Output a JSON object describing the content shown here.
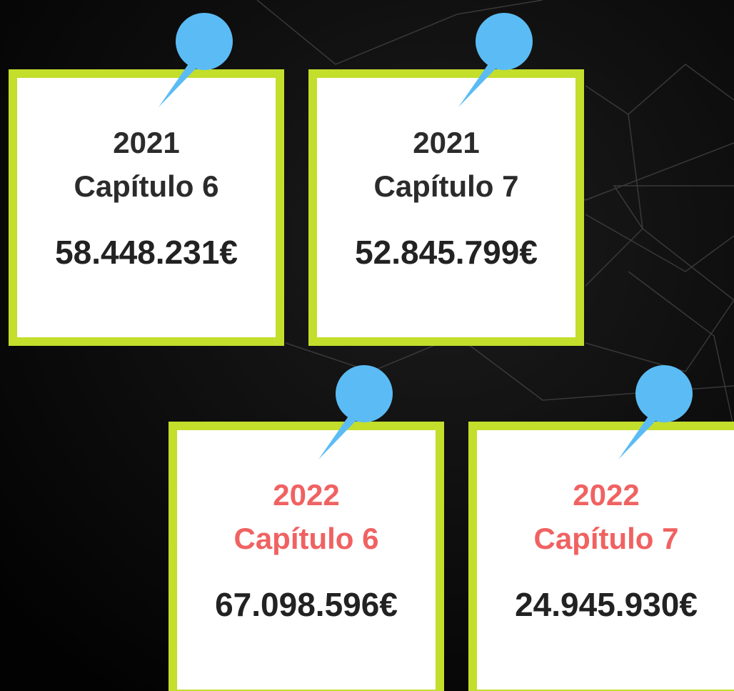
{
  "cards": [
    {
      "year": "2021",
      "chapter": "Capítulo 6",
      "amount": "58.448.231€"
    },
    {
      "year": "2021",
      "chapter": "Capítulo 7",
      "amount": "52.845.799€"
    },
    {
      "year": "2022",
      "chapter": "Capítulo 6",
      "amount": "67.098.596€"
    },
    {
      "year": "2022",
      "chapter": "Capítulo 7",
      "amount": "24.945.930€"
    }
  ]
}
